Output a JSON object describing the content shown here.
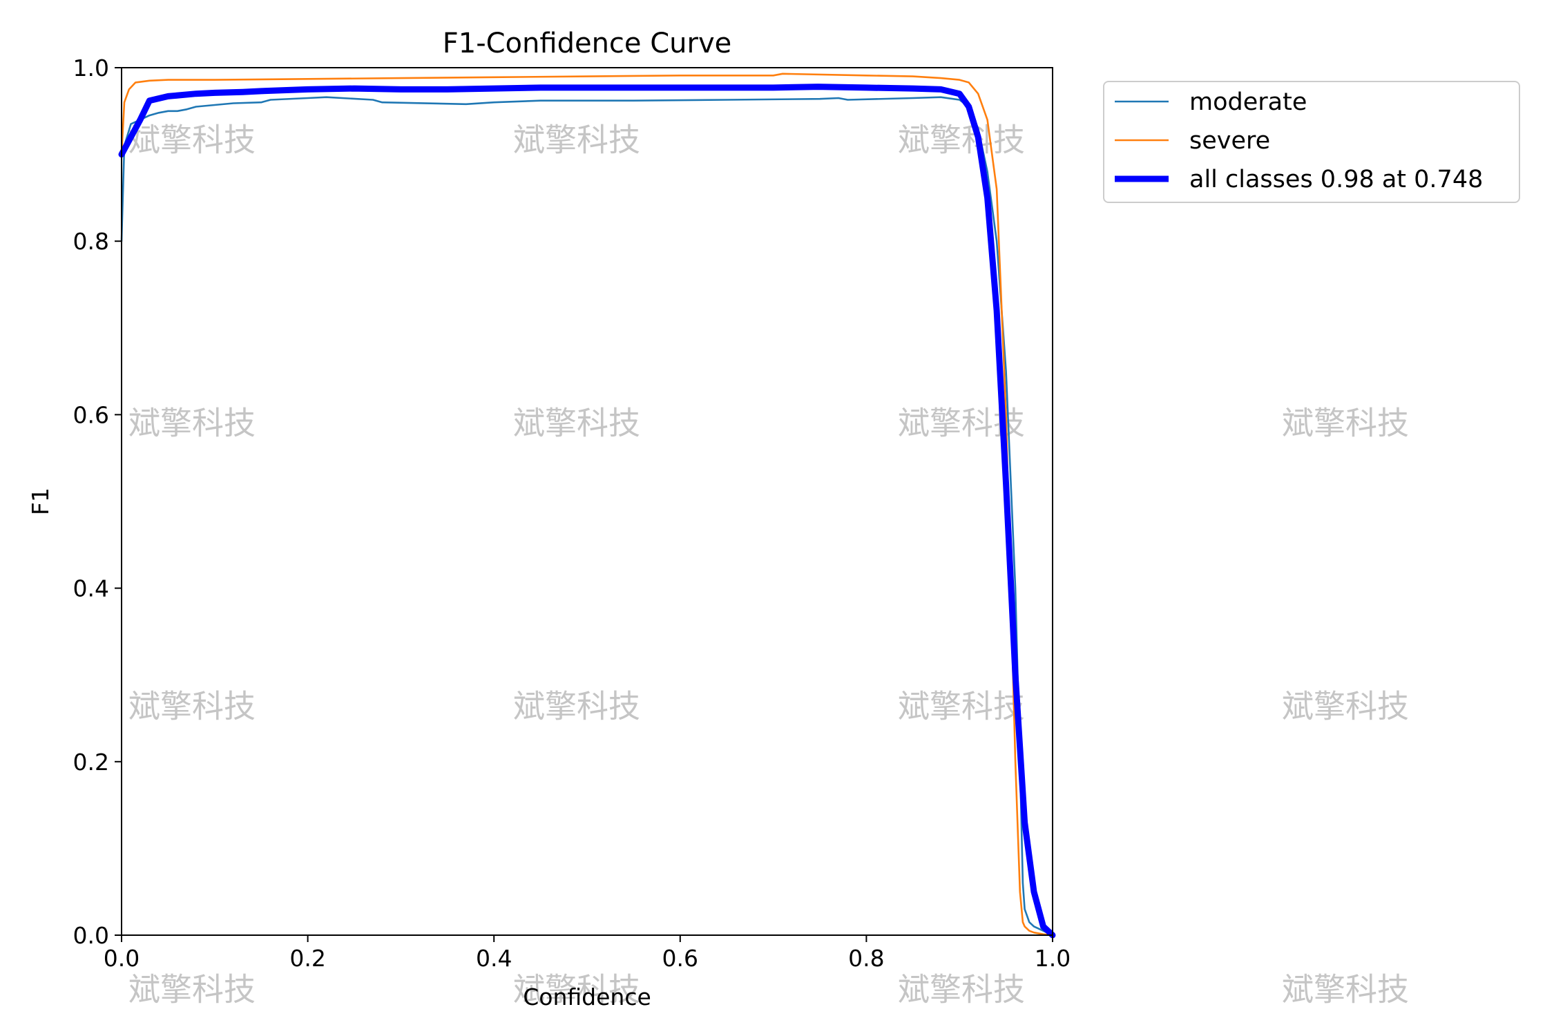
{
  "watermark": {
    "text": "斌擎科技",
    "color": "#bfbfbf"
  },
  "chart_data": {
    "type": "line",
    "title": "F1-Confidence Curve",
    "xlabel": "Confidence",
    "ylabel": "F1",
    "xlim": [
      0.0,
      1.0
    ],
    "ylim": [
      0.0,
      1.0
    ],
    "xticks": [
      "0.0",
      "0.2",
      "0.4",
      "0.6",
      "0.8",
      "1.0"
    ],
    "yticks": [
      "0.0",
      "0.2",
      "0.4",
      "0.6",
      "0.8",
      "1.0"
    ],
    "grid": false,
    "legend_position": "outside-top-right",
    "series": [
      {
        "name": "moderate",
        "color": "#1f77b4",
        "width": "thin",
        "x": [
          0.0,
          0.003,
          0.01,
          0.02,
          0.03,
          0.04,
          0.05,
          0.06,
          0.07,
          0.08,
          0.1,
          0.12,
          0.15,
          0.16,
          0.2,
          0.22,
          0.27,
          0.28,
          0.37,
          0.4,
          0.45,
          0.55,
          0.65,
          0.75,
          0.77,
          0.78,
          0.85,
          0.88,
          0.9,
          0.91,
          0.92,
          0.93,
          0.94,
          0.95,
          0.96,
          0.965,
          0.968,
          0.97,
          0.975,
          0.98,
          0.99,
          1.0
        ],
        "y": [
          0.8,
          0.91,
          0.935,
          0.94,
          0.945,
          0.948,
          0.95,
          0.95,
          0.952,
          0.955,
          0.957,
          0.959,
          0.96,
          0.963,
          0.965,
          0.966,
          0.963,
          0.96,
          0.958,
          0.96,
          0.962,
          0.962,
          0.963,
          0.964,
          0.965,
          0.963,
          0.965,
          0.966,
          0.963,
          0.955,
          0.93,
          0.88,
          0.8,
          0.65,
          0.4,
          0.2,
          0.06,
          0.03,
          0.015,
          0.01,
          0.005,
          0.0
        ]
      },
      {
        "name": "severe",
        "color": "#ff7f0e",
        "width": "thin",
        "x": [
          0.0,
          0.003,
          0.008,
          0.015,
          0.03,
          0.05,
          0.1,
          0.2,
          0.3,
          0.4,
          0.5,
          0.6,
          0.7,
          0.71,
          0.8,
          0.85,
          0.88,
          0.9,
          0.91,
          0.92,
          0.93,
          0.94,
          0.95,
          0.96,
          0.965,
          0.968,
          0.97,
          0.975,
          0.98,
          0.99,
          1.0
        ],
        "y": [
          0.9,
          0.96,
          0.975,
          0.983,
          0.985,
          0.986,
          0.986,
          0.987,
          0.988,
          0.989,
          0.99,
          0.991,
          0.991,
          0.993,
          0.991,
          0.99,
          0.988,
          0.986,
          0.983,
          0.97,
          0.94,
          0.86,
          0.6,
          0.2,
          0.05,
          0.015,
          0.01,
          0.005,
          0.003,
          0.001,
          0.0
        ]
      },
      {
        "name": "all classes 0.98 at 0.748",
        "color": "#0000ff",
        "width": "thick",
        "x": [
          0.0,
          0.01,
          0.02,
          0.03,
          0.05,
          0.08,
          0.1,
          0.13,
          0.15,
          0.2,
          0.25,
          0.3,
          0.35,
          0.4,
          0.45,
          0.5,
          0.55,
          0.6,
          0.65,
          0.7,
          0.748,
          0.8,
          0.85,
          0.88,
          0.9,
          0.91,
          0.92,
          0.93,
          0.94,
          0.95,
          0.96,
          0.97,
          0.98,
          0.99,
          1.0
        ],
        "y": [
          0.9,
          0.92,
          0.94,
          0.962,
          0.967,
          0.97,
          0.971,
          0.972,
          0.973,
          0.975,
          0.976,
          0.975,
          0.975,
          0.976,
          0.977,
          0.977,
          0.977,
          0.977,
          0.977,
          0.977,
          0.978,
          0.977,
          0.976,
          0.975,
          0.97,
          0.955,
          0.92,
          0.85,
          0.72,
          0.52,
          0.3,
          0.13,
          0.05,
          0.01,
          0.0
        ]
      }
    ]
  }
}
